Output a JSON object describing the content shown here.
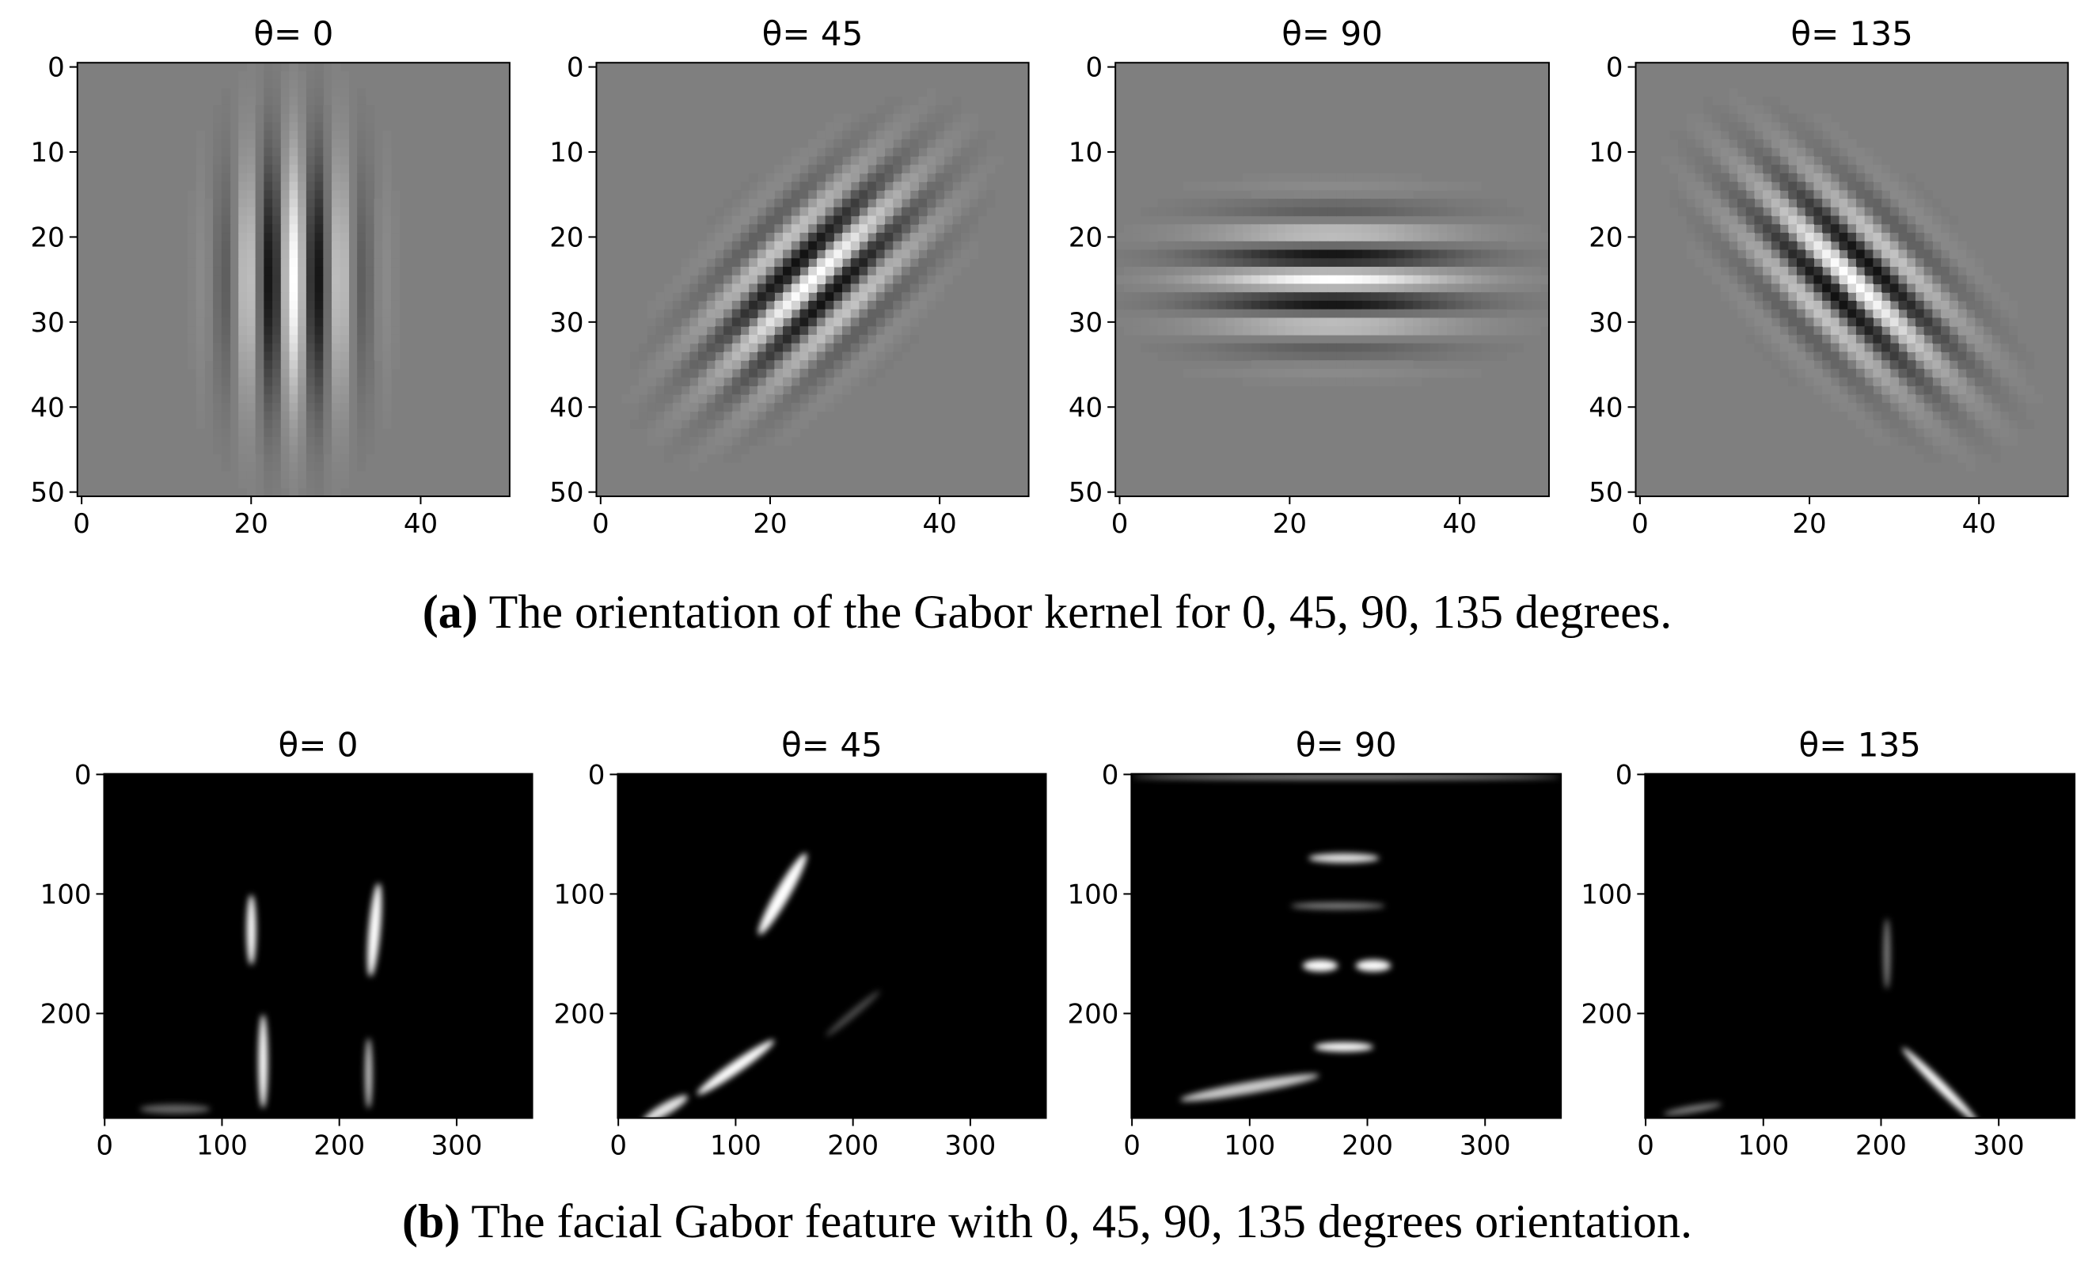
{
  "chart_data": [
    {
      "type": "image",
      "title": "θ= 0",
      "xlim": [
        -0.5,
        50.5
      ],
      "ylim": [
        50.5,
        -0.5
      ],
      "xticks": [
        0,
        20,
        40
      ],
      "yticks": [
        0,
        10,
        20,
        30,
        40,
        50
      ]
    },
    {
      "type": "image",
      "title": "θ= 45",
      "xlim": [
        -0.5,
        50.5
      ],
      "ylim": [
        50.5,
        -0.5
      ],
      "xticks": [
        0,
        20,
        40
      ],
      "yticks": [
        0,
        10,
        20,
        30,
        40,
        50
      ]
    },
    {
      "type": "image",
      "title": "θ= 90",
      "xlim": [
        -0.5,
        50.5
      ],
      "ylim": [
        50.5,
        -0.5
      ],
      "xticks": [
        0,
        20,
        40
      ],
      "yticks": [
        0,
        10,
        20,
        30,
        40,
        50
      ]
    },
    {
      "type": "image",
      "title": "θ= 135",
      "xlim": [
        -0.5,
        50.5
      ],
      "ylim": [
        50.5,
        -0.5
      ],
      "xticks": [
        0,
        20,
        40
      ],
      "yticks": [
        0,
        10,
        20,
        30,
        40,
        50
      ]
    },
    {
      "type": "image",
      "title": "θ= 0",
      "xlim": [
        -0.5,
        364.5
      ],
      "ylim": [
        287.5,
        -0.5
      ],
      "xticks": [
        0,
        100,
        200,
        300
      ],
      "yticks": [
        0,
        100,
        200
      ]
    },
    {
      "type": "image",
      "title": "θ= 45",
      "xlim": [
        -0.5,
        364.5
      ],
      "ylim": [
        287.5,
        -0.5
      ],
      "xticks": [
        0,
        100,
        200,
        300
      ],
      "yticks": [
        0,
        100,
        200
      ]
    },
    {
      "type": "image",
      "title": "θ= 90",
      "xlim": [
        -0.5,
        364.5
      ],
      "ylim": [
        287.5,
        -0.5
      ],
      "xticks": [
        0,
        100,
        200,
        300
      ],
      "yticks": [
        0,
        100,
        200
      ]
    },
    {
      "type": "image",
      "title": "θ= 135",
      "xlim": [
        -0.5,
        364.5
      ],
      "ylim": [
        287.5,
        -0.5
      ],
      "xticks": [
        0,
        100,
        200,
        300
      ],
      "yticks": [
        0,
        100,
        200
      ]
    }
  ],
  "captions": [
    {
      "label": "(a)",
      "text": "The orientation of the Gabor kernel for 0, 45, 90, 135 degrees."
    },
    {
      "label": "(b)",
      "text": "The facial Gabor feature with 0, 45, 90, 135 degrees orientation."
    }
  ]
}
